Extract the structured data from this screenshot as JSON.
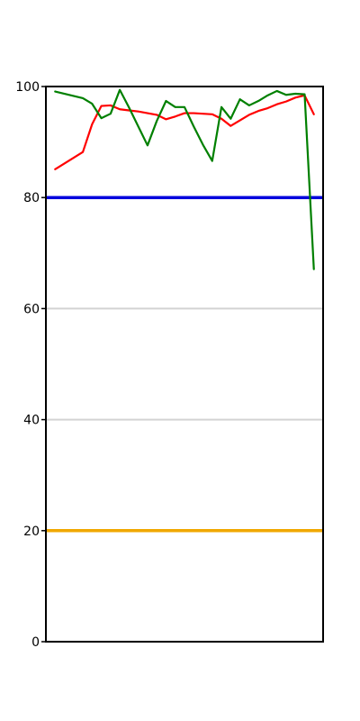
{
  "chart_data": {
    "type": "line",
    "title": "",
    "xlabel": "",
    "ylabel": "",
    "ylim": [
      0,
      100
    ],
    "yticks": [
      0,
      20,
      40,
      60,
      80,
      100
    ],
    "xlim": [
      0,
      30
    ],
    "grid": {
      "horizontal_lines_at": [
        40,
        60
      ],
      "color": "#d3d3d3"
    },
    "reference_lines": [
      {
        "y": 80,
        "color": "#0000dd"
      },
      {
        "y": 20,
        "color": "#f0a800"
      }
    ],
    "series": [
      {
        "color": "#ff0000",
        "x": [
          1,
          4,
          5,
          6,
          7,
          8,
          9,
          10,
          11,
          12,
          13,
          14,
          15,
          16,
          17,
          18,
          19,
          20,
          21,
          22,
          23,
          24,
          25,
          26,
          27,
          28,
          29
        ],
        "y": [
          85.1,
          88.2,
          93.2,
          96.5,
          96.6,
          95.9,
          95.7,
          95.5,
          95.2,
          94.9,
          94.1,
          94.6,
          95.2,
          95.2,
          95.1,
          95.0,
          94.2,
          92.9,
          93.9,
          94.9,
          95.6,
          96.1,
          96.8,
          97.3,
          98.0,
          98.4,
          95.0
        ]
      },
      {
        "color": "#008000",
        "x": [
          1,
          4,
          5,
          6,
          7,
          8,
          9,
          10,
          11,
          12,
          13,
          14,
          15,
          16,
          17,
          18,
          19,
          20,
          21,
          22,
          23,
          24,
          25,
          26,
          27,
          28,
          29
        ],
        "y": [
          99.1,
          97.9,
          96.9,
          94.3,
          95.1,
          99.4,
          96.2,
          92.8,
          89.4,
          93.8,
          97.4,
          96.3,
          96.3,
          92.8,
          89.5,
          86.6,
          96.3,
          94.2,
          97.7,
          96.6,
          97.4,
          98.4,
          99.2,
          98.5,
          98.7,
          98.6,
          67.1
        ]
      }
    ]
  }
}
